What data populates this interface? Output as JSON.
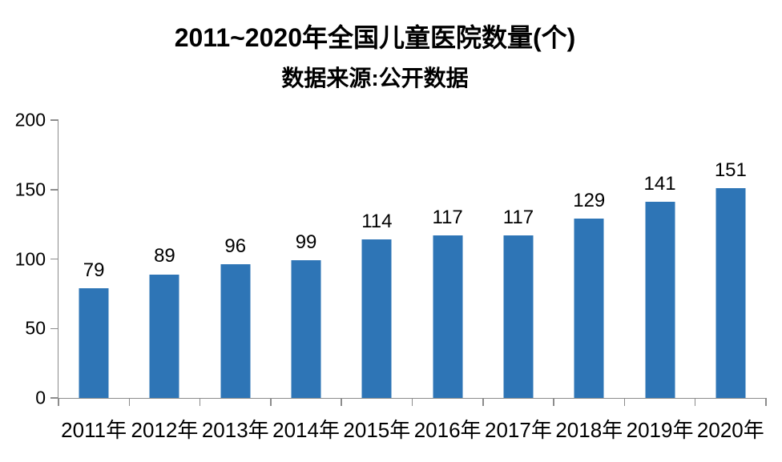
{
  "colors": {
    "bar": "#2E75B6",
    "axis": "#8C8C8C",
    "text": "#000000"
  },
  "chart_data": {
    "type": "bar",
    "title": "2011~2020年全国儿童医院数量(个)",
    "subtitle": "数据来源:公开数据",
    "categories": [
      "2011年",
      "2012年",
      "2013年",
      "2014年",
      "2015年",
      "2016年",
      "2017年",
      "2018年",
      "2019年",
      "2020年"
    ],
    "values": [
      79,
      89,
      96,
      99,
      114,
      117,
      117,
      129,
      141,
      151
    ],
    "xlabel": "",
    "ylabel": "",
    "ylim": [
      0,
      200
    ],
    "yticks": [
      0,
      50,
      100,
      150,
      200
    ],
    "grid": false,
    "legend": "none",
    "data_labels": true
  }
}
